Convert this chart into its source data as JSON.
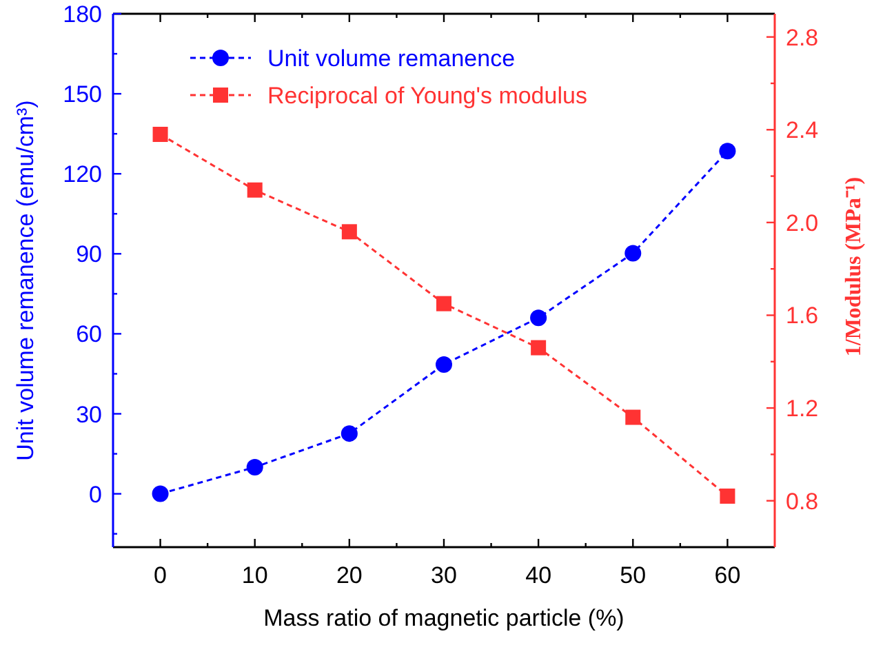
{
  "chart_data": {
    "type": "line",
    "xlabel": "Mass ratio of magnetic particle (%)",
    "ylabel": "Unit volume remanence (emu/cm³)",
    "y2label": "1/Modulus (MPa⁻¹)",
    "x": [
      0,
      10,
      20,
      30,
      40,
      50,
      60
    ],
    "series": [
      {
        "name": "Unit volume remanence",
        "color": "#0000ff",
        "values": [
          0,
          10,
          22.6,
          48.5,
          66,
          90.2,
          128.5
        ],
        "marker": "circle",
        "line_style": "dashed"
      },
      {
        "name": "Reciprocal of Young's modulus",
        "color": "#ff3333",
        "values": [
          2.38,
          2.14,
          1.96,
          1.65,
          1.46,
          1.16,
          0.82
        ],
        "marker": "square",
        "line_style": "dashed",
        "axis": "y2"
      }
    ],
    "xlim": [
      -5,
      65
    ],
    "xticks": [
      0,
      {
        "value": 5,
        "label": null
      },
      10,
      {
        "value": 15,
        "label": null
      },
      20,
      {
        "value": 25,
        "label": null
      },
      30,
      {
        "value": 35,
        "label": null
      },
      40,
      {
        "value": 45,
        "label": null
      },
      50,
      {
        "value": 55,
        "label": null
      },
      60
    ],
    "ylim": [
      -20,
      180
    ],
    "yticks": [
      {
        "value": -15,
        "label": null
      },
      0,
      {
        "value": 15,
        "label": null
      },
      30,
      {
        "value": 45,
        "label": null
      },
      60,
      {
        "value": 75,
        "label": null
      },
      90,
      {
        "value": 105,
        "label": null
      },
      120,
      {
        "value": 135,
        "label": null
      },
      150,
      {
        "value": 165,
        "label": null
      },
      180
    ],
    "y2lim": [
      0.6,
      2.9
    ],
    "y2ticks": [
      0.8,
      {
        "value": 1.0,
        "label": null
      },
      {
        "value": 1.2,
        "label": "1.2"
      },
      {
        "value": 1.4,
        "label": null
      },
      {
        "value": 1.6,
        "label": "1.6"
      },
      {
        "value": 1.8,
        "label": null
      },
      {
        "value": 2.0,
        "label": "2.0"
      },
      {
        "value": 2.2,
        "label": null
      },
      {
        "value": 2.4,
        "label": "2.4"
      },
      {
        "value": 2.6,
        "label": null
      },
      {
        "value": 2.8,
        "label": "2.8"
      }
    ],
    "grid": false,
    "legend": "top"
  }
}
